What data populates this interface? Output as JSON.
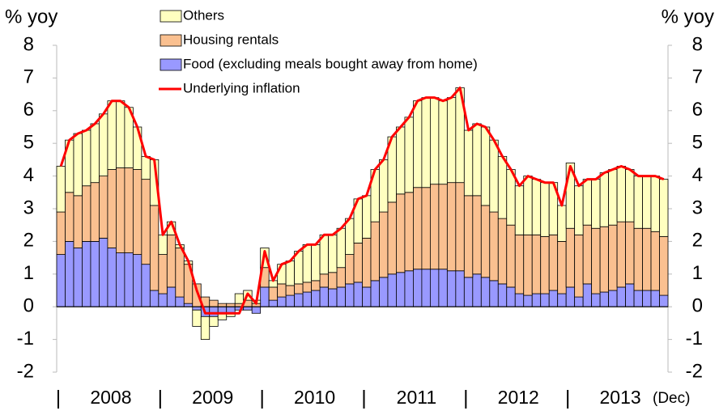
{
  "chart_data": {
    "type": "bar",
    "ylabel": "% yoy",
    "y2label": "% yoy",
    "ylim": [
      -2,
      8
    ],
    "yticks": [
      -2,
      -1,
      0,
      1,
      2,
      3,
      4,
      5,
      6,
      7,
      8
    ],
    "y2lim": [
      -2,
      8
    ],
    "y2ticks": [
      -2,
      -1,
      0,
      1,
      2,
      3,
      4,
      5,
      6,
      7,
      8
    ],
    "year_labels": [
      "2008",
      "2009",
      "2010",
      "2011",
      "2012",
      "2013"
    ],
    "x_note": "(Dec)",
    "legend": "upper left",
    "series": [
      {
        "name": "Food (excluding meals bought away from home)",
        "color": "#9999ff",
        "type": "bar",
        "values": [
          1.6,
          2.0,
          1.8,
          2.0,
          2.0,
          2.1,
          1.8,
          1.65,
          1.65,
          1.6,
          1.3,
          0.5,
          0.4,
          0.6,
          0.3,
          0.1,
          -0.1,
          -0.3,
          -0.3,
          -0.2,
          -0.2,
          -0.1,
          -0.1,
          -0.2,
          0.6,
          0.2,
          0.3,
          0.35,
          0.4,
          0.45,
          0.5,
          0.6,
          0.55,
          0.6,
          0.7,
          0.75,
          0.6,
          0.8,
          0.9,
          1.0,
          1.05,
          1.1,
          1.15,
          1.15,
          1.15,
          1.15,
          1.1,
          1.1,
          0.9,
          1.0,
          0.9,
          0.8,
          0.7,
          0.6,
          0.4,
          0.35,
          0.4,
          0.4,
          0.5,
          0.4,
          0.6,
          0.3,
          0.7,
          0.4,
          0.45,
          0.5,
          0.6,
          0.7,
          0.5,
          0.5,
          0.5,
          0.35
        ]
      },
      {
        "name": "Housing rentals",
        "color": "#fac090",
        "type": "bar",
        "values": [
          1.3,
          1.5,
          1.6,
          1.7,
          1.8,
          1.9,
          2.4,
          2.6,
          2.6,
          2.6,
          2.6,
          2.6,
          1.2,
          1.6,
          1.5,
          1.2,
          0.7,
          0.3,
          0.2,
          0.1,
          0.1,
          0.1,
          0.2,
          0.1,
          0.6,
          0.4,
          0.4,
          0.3,
          0.3,
          0.3,
          0.3,
          0.4,
          0.5,
          0.6,
          0.9,
          1.2,
          1.5,
          1.8,
          2.0,
          2.2,
          2.4,
          2.4,
          2.5,
          2.5,
          2.6,
          2.6,
          2.7,
          2.7,
          2.5,
          2.4,
          2.2,
          2.1,
          2.0,
          1.9,
          1.8,
          1.85,
          1.8,
          1.75,
          1.7,
          1.6,
          1.8,
          1.9,
          1.8,
          2.0,
          2.0,
          2.0,
          2.0,
          1.9,
          1.9,
          1.9,
          1.8,
          1.8
        ]
      },
      {
        "name": "Others",
        "color": "#ffffc0",
        "type": "bar",
        "values": [
          1.4,
          1.6,
          1.9,
          1.7,
          1.8,
          1.9,
          2.1,
          2.05,
          1.85,
          1.3,
          0.7,
          1.4,
          0.6,
          0.4,
          0.1,
          0.1,
          -0.5,
          -0.7,
          -0.3,
          -0.2,
          -0.1,
          0.3,
          0.3,
          0.1,
          0.6,
          0.2,
          0.6,
          0.75,
          1.0,
          1.15,
          1.1,
          1.2,
          1.15,
          1.2,
          1.1,
          1.35,
          1.3,
          1.6,
          1.6,
          2.0,
          2.05,
          2.3,
          2.65,
          2.75,
          2.65,
          2.55,
          2.6,
          2.9,
          2.0,
          2.2,
          2.4,
          2.2,
          1.9,
          1.7,
          1.5,
          1.8,
          1.7,
          1.65,
          1.6,
          1.1,
          2.0,
          1.5,
          1.4,
          1.5,
          1.65,
          1.7,
          1.7,
          1.6,
          1.6,
          1.6,
          1.7,
          1.75
        ]
      },
      {
        "name": "Underlying inflation",
        "color": "#ff0000",
        "type": "line",
        "values": [
          4.3,
          5.1,
          5.3,
          5.4,
          5.6,
          5.9,
          6.3,
          6.3,
          6.1,
          5.5,
          4.6,
          4.5,
          2.2,
          2.6,
          1.9,
          1.4,
          0.5,
          -0.2,
          -0.2,
          -0.2,
          -0.2,
          -0.2,
          0.4,
          0.1,
          1.7,
          0.8,
          1.3,
          1.4,
          1.7,
          1.9,
          1.9,
          2.2,
          2.2,
          2.4,
          2.7,
          3.3,
          3.4,
          4.2,
          4.5,
          5.2,
          5.5,
          5.8,
          6.3,
          6.4,
          6.4,
          6.3,
          6.4,
          6.7,
          5.4,
          5.6,
          5.5,
          5.1,
          4.6,
          4.2,
          3.7,
          4.0,
          3.9,
          3.8,
          3.8,
          3.1,
          4.3,
          3.7,
          3.9,
          3.9,
          4.1,
          4.2,
          4.3,
          4.2,
          4.0,
          4.0,
          4.0,
          3.9
        ]
      }
    ]
  }
}
